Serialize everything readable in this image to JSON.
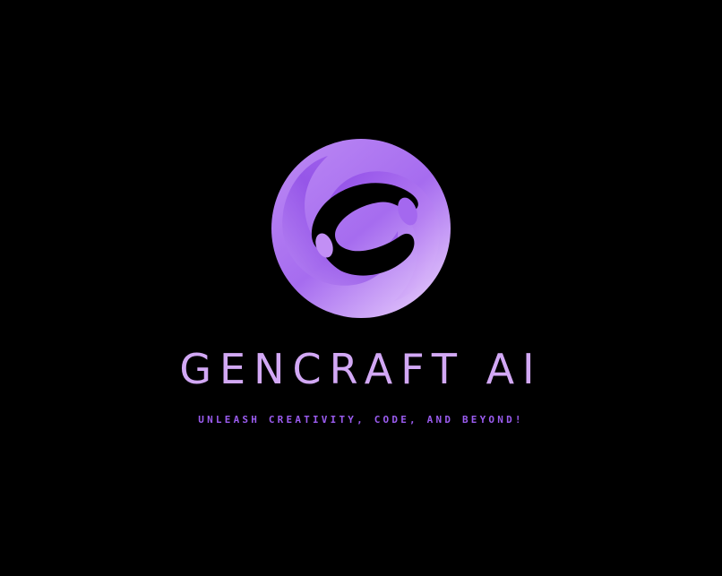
{
  "brand": {
    "name": "GENCRAFT AI",
    "tagline": "UNLEASH CREATIVITY, CODE, AND BEYOND!"
  },
  "logo": {
    "icon": "swirl-circle-icon",
    "colors": {
      "light": "#e2c4fb",
      "mid": "#b27cf2",
      "deep": "#8c44e6",
      "background": "#000000"
    }
  },
  "text_colors": {
    "name": "#d2a8f5",
    "tagline": "#9b5cf0"
  }
}
